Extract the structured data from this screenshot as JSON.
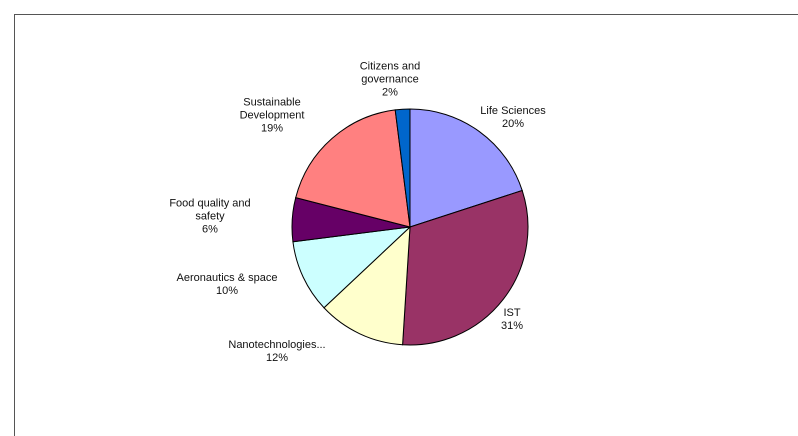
{
  "chart_data": {
    "type": "pie",
    "categories": [
      "Life Sciences",
      "IST",
      "Nanotechnologies...",
      "Aeronautics & space",
      "Food quality and safety",
      "Sustainable Development",
      "Citizens and governance"
    ],
    "values": [
      20,
      31,
      12,
      10,
      6,
      19,
      2
    ],
    "value_labels": [
      "20%",
      "31%",
      "12%",
      "10%",
      "6%",
      "19%",
      "2%"
    ],
    "colors": [
      "#9999ff",
      "#993366",
      "#ffffcc",
      "#ccffff",
      "#660066",
      "#ff8080",
      "#0066cc"
    ]
  }
}
